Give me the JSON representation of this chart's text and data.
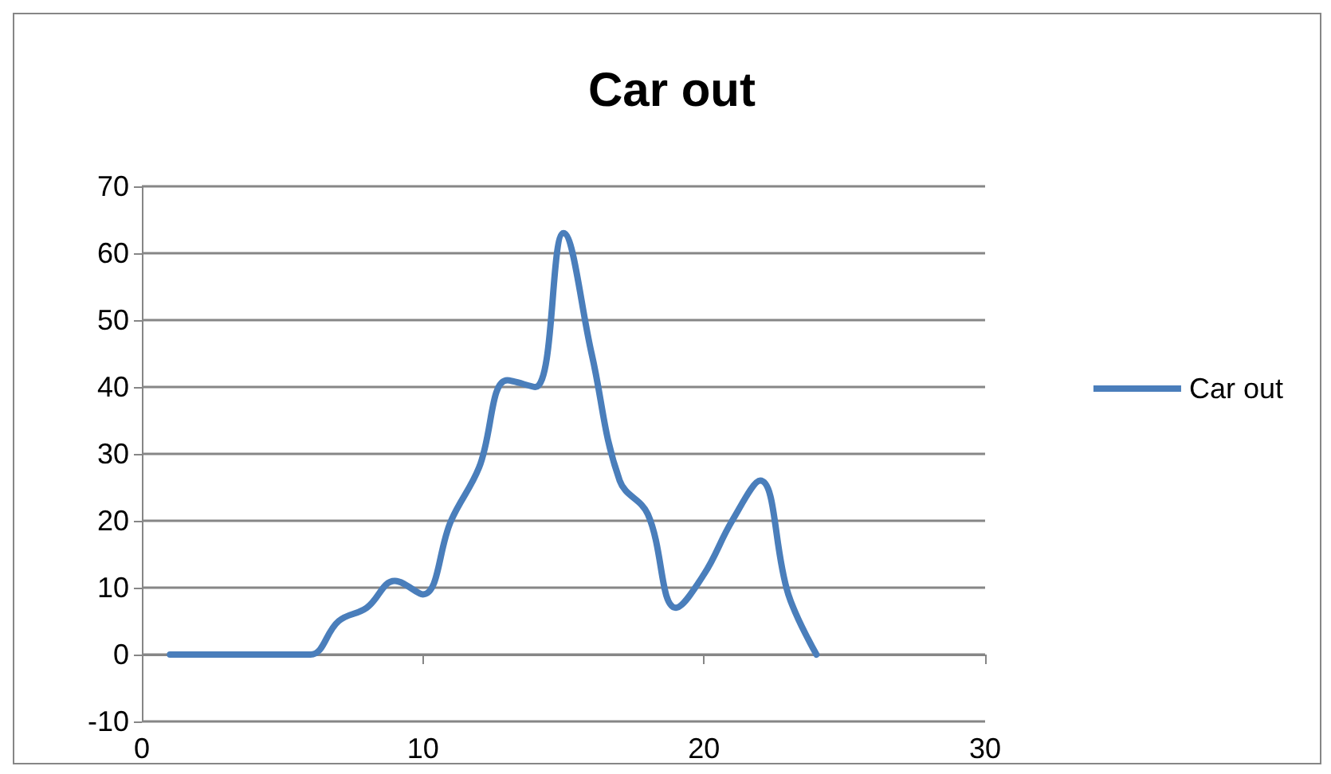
{
  "chart_data": {
    "type": "line",
    "title": "Car out",
    "x": [
      1,
      2,
      3,
      4,
      5,
      6,
      7,
      8,
      9,
      10,
      11,
      12,
      13,
      14,
      15,
      16,
      17,
      18,
      19,
      20,
      21,
      22,
      23,
      24
    ],
    "series": [
      {
        "name": "Car out",
        "color": "#4a7ebb",
        "values": [
          0,
          0,
          0,
          0,
          0,
          0,
          5,
          7,
          11,
          9,
          20,
          28,
          41,
          40,
          63,
          45,
          26,
          21,
          7,
          12,
          20,
          26,
          9,
          0
        ]
      }
    ],
    "xlim": [
      0,
      30
    ],
    "xticks": [
      0,
      10,
      20,
      30
    ],
    "ylim": [
      -10,
      70
    ],
    "yticks": [
      -10,
      0,
      10,
      20,
      30,
      40,
      50,
      60,
      70
    ],
    "grid": "y",
    "legend": "right",
    "marker": "none",
    "line_style": "solid"
  }
}
